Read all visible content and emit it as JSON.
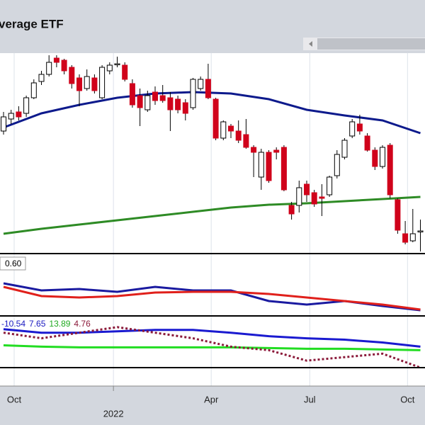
{
  "chart_data": [
    {
      "type": "candlestick",
      "title": "verage ETF",
      "up_color": "#ffffff",
      "down_color": "#d0021b",
      "grid": true,
      "ylim": [
        0,
        283
      ],
      "xlim": [
        -0.5,
        55.6
      ],
      "xticks": [
        {
          "value": 1.4,
          "label": "Oct"
        },
        {
          "value": 27.4,
          "label": "Apr"
        },
        {
          "value": 40.4,
          "label": "Jul"
        },
        {
          "value": 53.3,
          "label": "Oct"
        }
      ],
      "year_ticks": [
        {
          "value": 14.5,
          "label": "2022"
        }
      ],
      "open": [
        173,
        190,
        200,
        198,
        220,
        243,
        253,
        276,
        273,
        263,
        248,
        233,
        248,
        220,
        258,
        268,
        266,
        240,
        223,
        203,
        228,
        223,
        220,
        218,
        213,
        206,
        233,
        246,
        218,
        163,
        180,
        173,
        168,
        150,
        108,
        143,
        146,
        150,
        68,
        68,
        98,
        86,
        80,
        83,
        110,
        136,
        166,
        183,
        166,
        146,
        123,
        153,
        76,
        28,
        18,
        32
      ],
      "high": [
        200,
        203,
        208,
        223,
        246,
        258,
        280,
        280,
        275,
        266,
        253,
        260,
        253,
        266,
        270,
        278,
        270,
        246,
        233,
        230,
        236,
        238,
        228,
        223,
        218,
        248,
        250,
        268,
        220,
        188,
        183,
        188,
        190,
        153,
        148,
        146,
        150,
        153,
        73,
        103,
        103,
        90,
        98,
        110,
        146,
        163,
        190,
        196,
        170,
        150,
        153,
        156,
        78,
        46,
        63,
        48
      ],
      "low": [
        168,
        183,
        188,
        193,
        218,
        238,
        250,
        263,
        253,
        233,
        208,
        230,
        226,
        218,
        253,
        263,
        243,
        206,
        180,
        200,
        210,
        213,
        173,
        198,
        188,
        203,
        230,
        218,
        160,
        160,
        163,
        156,
        148,
        108,
        90,
        100,
        133,
        88,
        48,
        58,
        73,
        66,
        53,
        80,
        106,
        133,
        163,
        168,
        144,
        118,
        120,
        78,
        28,
        13,
        16,
        3
      ],
      "close": [
        193,
        198,
        193,
        220,
        241,
        253,
        270,
        270,
        258,
        240,
        230,
        250,
        230,
        263,
        266,
        268,
        246,
        210,
        206,
        223,
        216,
        216,
        203,
        203,
        198,
        246,
        246,
        220,
        163,
        186,
        173,
        160,
        150,
        143,
        143,
        103,
        143,
        90,
        56,
        93,
        83,
        70,
        78,
        108,
        140,
        160,
        186,
        173,
        146,
        123,
        150,
        83,
        33,
        16,
        28,
        32
      ],
      "lines": [
        {
          "color": "#0d1a8c",
          "x": [
            0,
            5,
            10,
            15,
            20,
            25,
            30,
            35,
            40,
            45,
            50,
            55
          ],
          "values": [
            178,
            198,
            210,
            220,
            226,
            228,
            226,
            218,
            203,
            195,
            188,
            170
          ]
        },
        {
          "color": "#2e8b25",
          "x": [
            0,
            5,
            10,
            15,
            20,
            25,
            30,
            35,
            40,
            45,
            50,
            55
          ],
          "values": [
            28,
            35,
            41,
            47,
            53,
            59,
            65,
            69,
            71,
            74,
            77,
            80
          ]
        }
      ]
    },
    {
      "type": "line",
      "label": "0.60",
      "ylim": [
        0,
        85
      ],
      "x": [
        0,
        5,
        10,
        15,
        20,
        25,
        30,
        35,
        40,
        45,
        50,
        55
      ],
      "series": [
        {
          "color": "#1a1aa0",
          "values": [
            45,
            35,
            37,
            33,
            40,
            35,
            35,
            20,
            15,
            20,
            13,
            7
          ]
        },
        {
          "color": "#e0201b",
          "values": [
            40,
            27,
            25,
            27,
            32,
            33,
            33,
            30,
            25,
            20,
            15,
            8
          ]
        }
      ]
    },
    {
      "type": "line",
      "labels": [
        "-10.54",
        "7.65",
        "13.89",
        "4.76"
      ],
      "label_colors": [
        "#1a1ac0",
        "#1a1ac0",
        "#1faa1f",
        "#8b1a3a"
      ],
      "ylim": [
        0,
        72
      ],
      "x": [
        0,
        5,
        10,
        15,
        20,
        25,
        30,
        35,
        40,
        45,
        50,
        55
      ],
      "series": [
        {
          "color": "#1a1ad0",
          "values": [
            55,
            50,
            50,
            52,
            54,
            54,
            50,
            45,
            42,
            40,
            36,
            30
          ]
        },
        {
          "color": "#22dd22",
          "values": [
            32,
            30,
            29,
            29,
            29,
            29,
            29,
            28,
            27,
            27,
            26,
            25
          ]
        },
        {
          "color": "#8b1a3a",
          "dashed": true,
          "values": [
            50,
            42,
            50,
            58,
            50,
            42,
            30,
            25,
            10,
            15,
            20,
            0
          ]
        }
      ]
    }
  ]
}
